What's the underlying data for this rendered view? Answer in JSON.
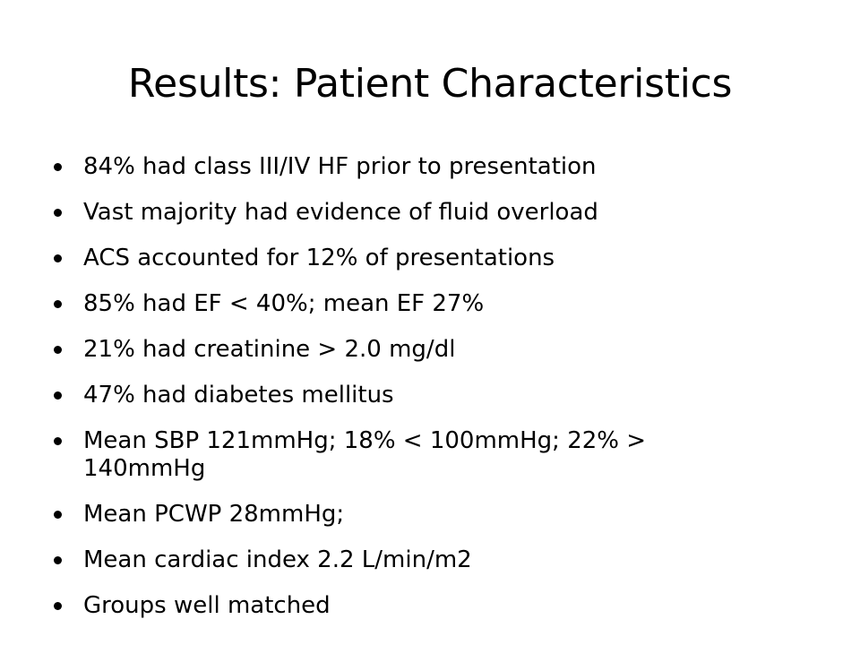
{
  "slide": {
    "title": "Results: Patient Characteristics",
    "bullets": [
      "84% had class III/IV HF prior to presentation",
      "Vast majority had evidence of fluid overload",
      "ACS accounted for 12% of presentations",
      "85% had EF < 40%; mean EF 27%",
      "21% had creatinine > 2.0 mg/dl",
      "47% had diabetes mellitus",
      "Mean SBP 121mmHg; 18% < 100mmHg; 22% > 140mmHg",
      "Mean PCWP 28mmHg;",
      "Mean cardiac index 2.2 L/min/m2",
      "Groups well matched"
    ]
  }
}
